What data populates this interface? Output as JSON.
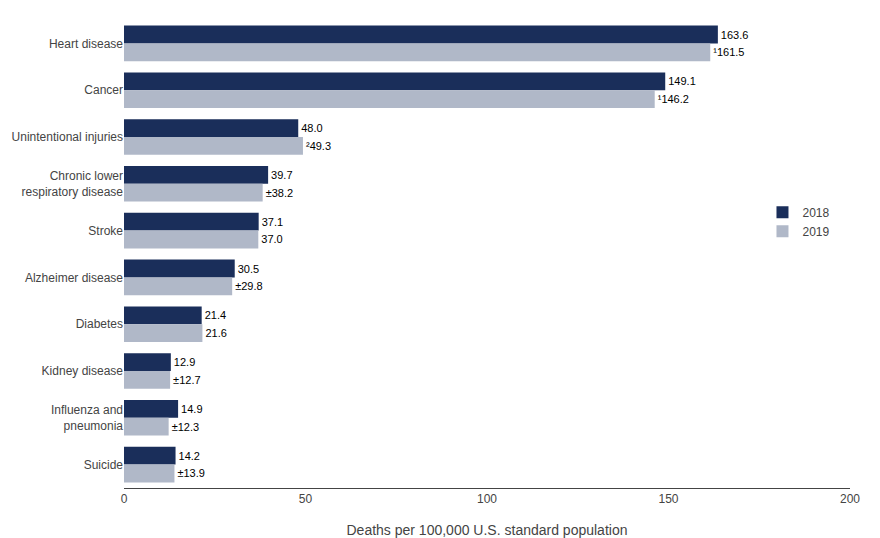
{
  "chart_data": {
    "type": "bar",
    "orientation": "horizontal",
    "categories": [
      "Heart disease",
      "Cancer",
      "Unintentional injuries",
      "Chronic lower\nrespiratory disease",
      "Stroke",
      "Alzheimer disease",
      "Diabetes",
      "Kidney disease",
      "Influenza and\npneumonia",
      "Suicide"
    ],
    "series": [
      {
        "name": "2018",
        "color": "#1a2e5a",
        "values": [
          163.6,
          149.1,
          48.0,
          39.7,
          37.1,
          30.5,
          21.4,
          12.9,
          14.9,
          14.2
        ],
        "value_labels": [
          "163.6",
          "149.1",
          "48.0",
          "39.7",
          "37.1",
          "30.5",
          "21.4",
          "12.9",
          "14.9",
          "14.2"
        ]
      },
      {
        "name": "2019",
        "color": "#b0b8c8",
        "values": [
          161.5,
          146.2,
          49.3,
          38.2,
          37.0,
          29.8,
          21.6,
          12.7,
          12.3,
          13.9
        ],
        "value_labels": [
          "¹161.5",
          "¹146.2",
          "²49.3",
          "±38.2",
          "37.0",
          "±29.8",
          "21.6",
          "±12.7",
          "±12.3",
          "±13.9"
        ]
      }
    ],
    "xlabel": "Deaths per 100,000 U.S. standard population",
    "xlim": [
      0,
      200
    ],
    "xticks": [
      0,
      50,
      100,
      150,
      200
    ],
    "data_labels": true,
    "grid": false,
    "legend": "right"
  }
}
